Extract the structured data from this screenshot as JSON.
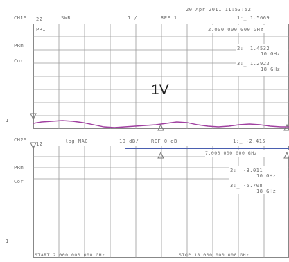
{
  "header": {
    "datetime": "20 Apr 2011  11:53:52",
    "ch1_label": "CH1S",
    "ch1_param": "22",
    "ch1_format": "SWR",
    "ch1_scale": "1  /",
    "ch1_ref": "REF 1",
    "ch1_marker_top": "1:_   1.5669",
    "ch1_pri": "PRI",
    "ch1_freq_top": "2.000 000 000 GHz"
  },
  "ch1": {
    "prm": "PRm",
    "cor": "Cor",
    "m2_value": "2:_   1.4532",
    "m2_freq": "10 GHz",
    "m3_value": "3:_   1.2923",
    "m3_freq": "18 GHz",
    "annotation": "1V",
    "ref_marker": "1"
  },
  "ch2": {
    "label": "CH2S",
    "param": "12",
    "format": "log MAG",
    "scale": "10 dB/",
    "ref": "REF 0 dB",
    "m1": "1:_ -2.415",
    "freq_top": "7.000 000 000 GHz",
    "m2_value": "2:_   -3.011",
    "m2_freq": "10 GHz",
    "m3_value": "3:_  -5.708",
    "m3_freq": "18 GHz",
    "prm": "PRm",
    "cor": "Cor",
    "ref_marker": "1"
  },
  "footer": {
    "start": "START  2.000 000 000 GHz",
    "stop": "STOP 18.000 000 000 GHz"
  },
  "colors": {
    "trace_ch1": "#a040a0",
    "trace_ch2": "#4a5fb0",
    "grid": "#888888"
  }
}
